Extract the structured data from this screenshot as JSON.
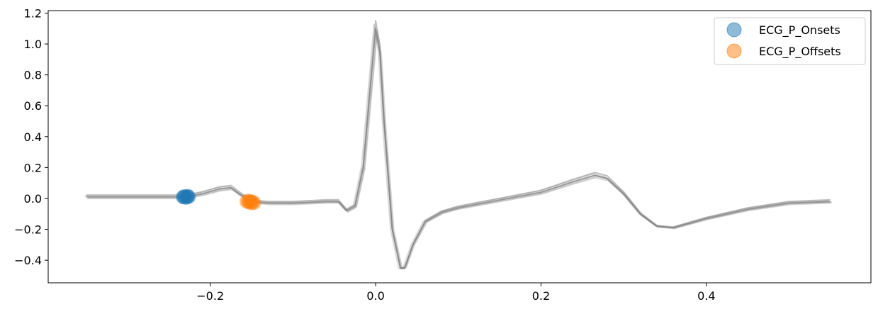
{
  "chart_data": {
    "type": "line",
    "title": "",
    "xlabel": "",
    "ylabel": "",
    "xlim": [
      -0.396,
      0.599
    ],
    "ylim": [
      -0.546,
      1.216
    ],
    "xticks": [
      -0.2,
      0.0,
      0.2,
      0.4
    ],
    "xtick_labels": [
      "−0.2",
      "0.0",
      "0.2",
      "0.4"
    ],
    "yticks": [
      -0.4,
      -0.2,
      0.0,
      0.2,
      0.4,
      0.6,
      0.8,
      1.0,
      1.2
    ],
    "ytick_labels": [
      "−0.4",
      "−0.2",
      "0.0",
      "0.2",
      "0.4",
      "0.6",
      "0.8",
      "1.0",
      "1.2"
    ],
    "grid": false,
    "legend_placement": "top-right",
    "trace_color": "#808080",
    "trace": {
      "x": [
        -0.35,
        -0.3,
        -0.25,
        -0.23,
        -0.21,
        -0.19,
        -0.175,
        -0.165,
        -0.15,
        -0.13,
        -0.1,
        -0.06,
        -0.045,
        -0.035,
        -0.025,
        -0.015,
        -0.005,
        0.0,
        0.005,
        0.01,
        0.02,
        0.03,
        0.035,
        0.045,
        0.06,
        0.08,
        0.1,
        0.15,
        0.2,
        0.24,
        0.265,
        0.28,
        0.3,
        0.32,
        0.34,
        0.36,
        0.4,
        0.45,
        0.5,
        0.55
      ],
      "y": [
        0.01,
        0.01,
        0.01,
        0.01,
        0.03,
        0.06,
        0.07,
        0.03,
        -0.02,
        -0.03,
        -0.03,
        -0.02,
        -0.02,
        -0.08,
        -0.05,
        0.2,
        0.8,
        1.1,
        0.95,
        0.5,
        -0.2,
        -0.45,
        -0.45,
        -0.3,
        -0.15,
        -0.09,
        -0.06,
        -0.01,
        0.04,
        0.11,
        0.15,
        0.13,
        0.03,
        -0.1,
        -0.18,
        -0.19,
        -0.13,
        -0.07,
        -0.03,
        -0.02
      ]
    },
    "series": [
      {
        "name": "ECG_P_Onsets",
        "color": "#1f77b4",
        "x": [
          -0.233,
          -0.231,
          -0.229,
          -0.228,
          -0.226,
          -0.232,
          -0.227
        ],
        "y": [
          0.01,
          0.015,
          0.005,
          0.012,
          0.01,
          0.008,
          0.016
        ]
      },
      {
        "name": "ECG_P_Offsets",
        "color": "#ff7f0e",
        "x": [
          -0.156,
          -0.153,
          -0.151,
          -0.149,
          -0.147,
          -0.154,
          -0.15
        ],
        "y": [
          -0.02,
          -0.025,
          -0.018,
          -0.022,
          -0.028,
          -0.015,
          -0.03
        ]
      }
    ]
  }
}
